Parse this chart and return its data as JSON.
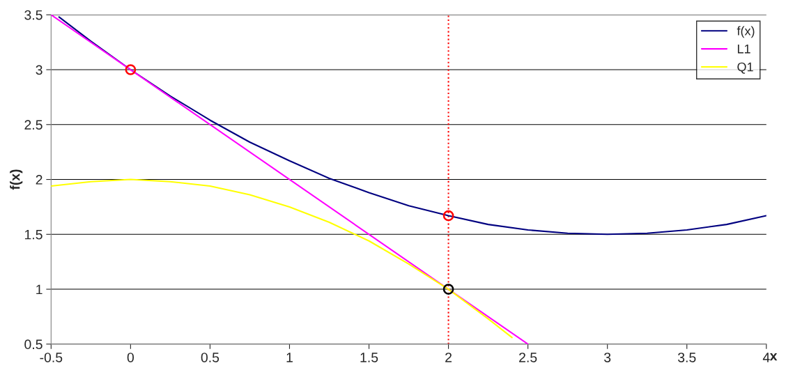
{
  "chart_data": {
    "type": "line",
    "xlabel": "x",
    "ylabel": "f(x)",
    "xlim": [
      -0.5,
      4
    ],
    "ylim": [
      0.5,
      3.5
    ],
    "xticks": [
      -0.5,
      0,
      0.5,
      1,
      1.5,
      2,
      2.5,
      3,
      3.5,
      4
    ],
    "yticks": [
      0.5,
      1,
      1.5,
      2,
      2.5,
      3,
      3.5
    ],
    "grid": "y",
    "legend": "top right",
    "series": [
      {
        "name": "f(x)",
        "color": "#000080",
        "x": [
          -0.45,
          -0.25,
          0,
          0.25,
          0.5,
          0.75,
          1,
          1.25,
          1.5,
          1.75,
          2,
          2.25,
          2.5,
          2.75,
          3,
          3.25,
          3.5,
          3.75,
          4
        ],
        "values": [
          3.48,
          3.26,
          3,
          2.76,
          2.54,
          2.34,
          2.17,
          2.01,
          1.88,
          1.76,
          1.67,
          1.59,
          1.54,
          1.51,
          1.5,
          1.51,
          1.54,
          1.59,
          1.67
        ]
      },
      {
        "name": "L1",
        "color": "#ff00ff",
        "x": [
          -0.5,
          2.5
        ],
        "values": [
          3.5,
          0.5
        ]
      },
      {
        "name": "Q1",
        "color": "#ffff00",
        "x": [
          -0.5,
          -0.25,
          0,
          0.25,
          0.5,
          0.75,
          1,
          1.25,
          1.5,
          1.75,
          2,
          2.25,
          2.4
        ],
        "values": [
          1.94,
          1.98,
          2,
          1.98,
          1.94,
          1.86,
          1.75,
          1.61,
          1.44,
          1.23,
          1,
          0.73,
          0.56
        ]
      },
      {
        "type": "scatter",
        "marker": "circle",
        "color": "#ff0000",
        "x": [
          0,
          2
        ],
        "values": [
          3,
          1.67
        ]
      },
      {
        "type": "scatter",
        "marker": "circle",
        "color": "#000000",
        "x": [
          2
        ],
        "values": [
          1
        ]
      }
    ],
    "ref_lines": [
      {
        "axis": "x",
        "value": 2,
        "color": "#ff0000",
        "line_style": "dotted"
      }
    ]
  }
}
